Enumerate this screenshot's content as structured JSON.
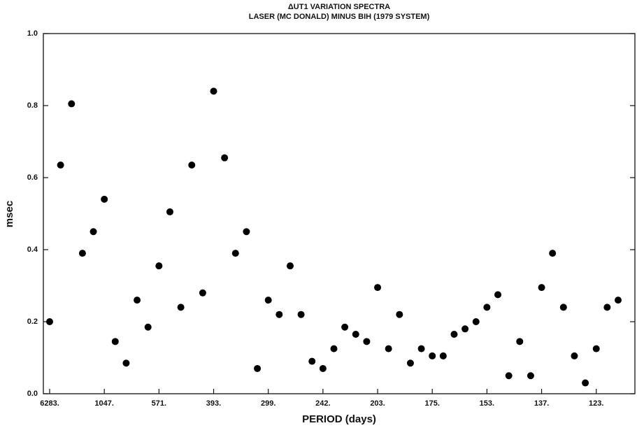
{
  "chart_data": {
    "type": "scatter",
    "title": "ΔUT1 VARIATION SPECTRA",
    "subtitle": "LASER (MC DONALD) MINUS BIH (1979 SYSTEM)",
    "x_label": "PERIOD (days)",
    "y_label": "msec",
    "categories": [
      "6283.",
      null,
      null,
      null,
      null,
      "1047.",
      null,
      null,
      null,
      null,
      "571.",
      null,
      null,
      null,
      null,
      "393.",
      null,
      null,
      null,
      null,
      "299.",
      null,
      null,
      null,
      null,
      "242.",
      null,
      null,
      null,
      null,
      "203.",
      null,
      null,
      null,
      null,
      "175.",
      null,
      null,
      null,
      null,
      "153.",
      null,
      null,
      null,
      null,
      "137.",
      null,
      null,
      null,
      null,
      "123.",
      null,
      null
    ],
    "values": [
      0.2,
      0.635,
      0.805,
      0.39,
      0.45,
      0.54,
      0.145,
      0.085,
      0.26,
      0.185,
      0.355,
      0.505,
      0.24,
      0.635,
      0.28,
      0.84,
      0.655,
      0.39,
      0.45,
      0.07,
      0.26,
      0.22,
      0.355,
      0.22,
      0.09,
      0.07,
      0.125,
      0.185,
      0.165,
      0.145,
      0.295,
      0.125,
      0.22,
      0.085,
      0.125,
      0.105,
      0.105,
      0.165,
      0.18,
      0.2,
      0.24,
      0.275,
      0.05,
      0.145,
      0.05,
      0.295,
      0.39,
      0.24,
      0.105,
      0.03,
      0.125,
      0.24,
      0.26
    ],
    "color": "#000000",
    "ylim": [
      0,
      1.0
    ],
    "yticks": [
      {
        "value": 0,
        "label": "0.0"
      },
      0.2,
      0.4,
      0.6,
      0.8,
      {
        "value": 1.0,
        "label": "1.0"
      }
    ]
  }
}
